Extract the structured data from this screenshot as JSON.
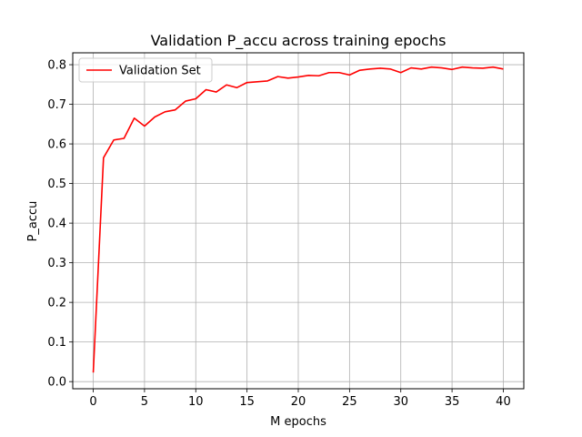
{
  "chart_data": {
    "type": "line",
    "title": "Validation P_accu across training epochs",
    "xlabel": "M epochs",
    "ylabel": "P_accu",
    "xlim": [
      -2,
      42
    ],
    "ylim": [
      -0.018,
      0.83
    ],
    "xticks": [
      0,
      5,
      10,
      15,
      20,
      25,
      30,
      35,
      40
    ],
    "yticks": [
      0.0,
      0.1,
      0.2,
      0.3,
      0.4,
      0.5,
      0.6,
      0.7,
      0.8
    ],
    "xtick_labels": [
      "0",
      "5",
      "10",
      "15",
      "20",
      "25",
      "30",
      "35",
      "40"
    ],
    "ytick_labels": [
      "0.0",
      "0.1",
      "0.2",
      "0.3",
      "0.4",
      "0.5",
      "0.6",
      "0.7",
      "0.8"
    ],
    "grid": true,
    "legend_position": "top-left",
    "series": [
      {
        "name": "Validation Set",
        "color": "#ff0000",
        "x": [
          0,
          1,
          2,
          3,
          4,
          5,
          6,
          7,
          8,
          9,
          10,
          11,
          12,
          13,
          14,
          15,
          16,
          17,
          18,
          19,
          20,
          21,
          22,
          23,
          24,
          25,
          26,
          27,
          28,
          29,
          30,
          31,
          32,
          33,
          34,
          35,
          36,
          37,
          38,
          39,
          40
        ],
        "y": [
          0.023,
          0.565,
          0.61,
          0.614,
          0.665,
          0.645,
          0.668,
          0.681,
          0.686,
          0.708,
          0.714,
          0.737,
          0.731,
          0.749,
          0.742,
          0.755,
          0.757,
          0.759,
          0.77,
          0.766,
          0.769,
          0.773,
          0.772,
          0.78,
          0.78,
          0.774,
          0.786,
          0.789,
          0.791,
          0.789,
          0.78,
          0.792,
          0.789,
          0.794,
          0.792,
          0.788,
          0.794,
          0.792,
          0.791,
          0.794,
          0.789
        ]
      }
    ]
  }
}
